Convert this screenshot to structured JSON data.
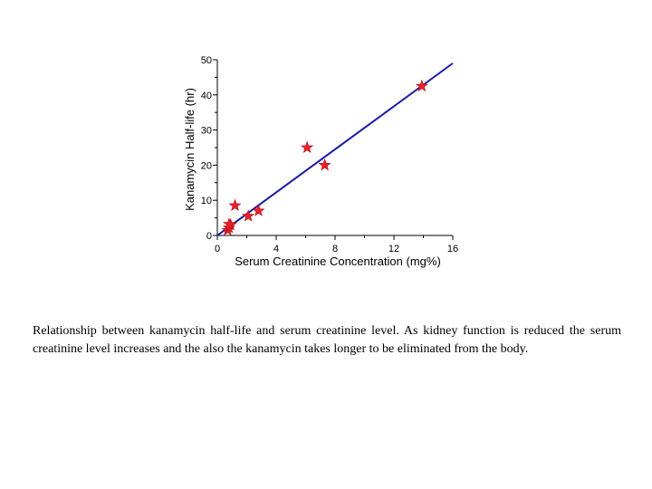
{
  "chart_data": {
    "type": "scatter",
    "xlabel": "Serum Creatinine Concentration (mg%)",
    "ylabel": "Kanamycin Half-life (hr)",
    "xlim": [
      0,
      16
    ],
    "ylim": [
      0,
      50
    ],
    "xticks": [
      "0",
      "4",
      "8",
      "12",
      "16"
    ],
    "yticks": [
      "0",
      "10",
      "20",
      "30",
      "40",
      "50"
    ],
    "grid": false,
    "marker": "star",
    "colors": {
      "points": "#e8212b",
      "fit_line": "#1a1aa6"
    },
    "points": [
      {
        "x": 0.7,
        "y": 1.5
      },
      {
        "x": 0.8,
        "y": 2.2
      },
      {
        "x": 0.9,
        "y": 3.0
      },
      {
        "x": 0.8,
        "y": 3.2
      },
      {
        "x": 1.2,
        "y": 8.5
      },
      {
        "x": 2.1,
        "y": 5.5
      },
      {
        "x": 2.8,
        "y": 7.0
      },
      {
        "x": 6.1,
        "y": 25.0
      },
      {
        "x": 7.3,
        "y": 20.0
      },
      {
        "x": 13.9,
        "y": 42.5
      }
    ],
    "fit_line": {
      "x0": 0,
      "y0": 0,
      "x1": 16,
      "y1": 49
    }
  },
  "caption": "Relationship between kanamycin half-life and serum creatinine level. As kidney function is reduced the serum creatinine level increases and the also the kanamycin takes longer to be eliminated from the body."
}
